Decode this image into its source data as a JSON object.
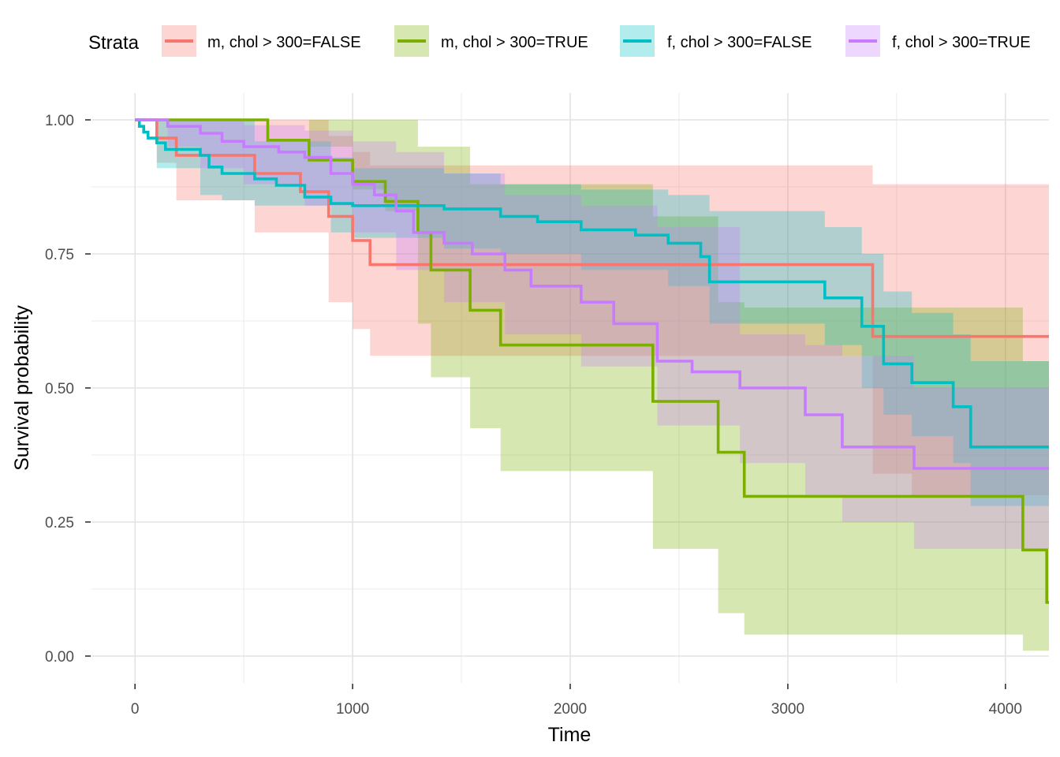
{
  "chart_data": {
    "type": "line",
    "subtype": "kaplan-meier survival curves with confidence bands",
    "xlabel": "Time",
    "ylabel": "Survival probability",
    "xlim": [
      -200,
      4200
    ],
    "ylim": [
      -0.05,
      1.05
    ],
    "x_ticks": [
      0,
      1000,
      2000,
      3000,
      4000
    ],
    "x_tick_labels": [
      "0",
      "1000",
      "2000",
      "3000",
      "4000"
    ],
    "y_ticks": [
      0,
      0.25,
      0.5,
      0.75,
      1
    ],
    "y_tick_labels": [
      "0.00",
      "0.25",
      "0.50",
      "0.75",
      "1.00"
    ],
    "legend": {
      "title": "Strata",
      "position": "top"
    },
    "series": [
      {
        "name": "m, chol > 300=FALSE",
        "color": "#F8766D",
        "steps": [
          [
            0,
            1
          ],
          [
            100,
            0.966
          ],
          [
            190,
            0.934
          ],
          [
            550,
            0.9
          ],
          [
            760,
            0.866
          ],
          [
            890,
            0.82
          ],
          [
            1000,
            0.775
          ],
          [
            1080,
            0.73
          ],
          [
            3390,
            0.596
          ],
          [
            4200,
            0.596
          ]
        ],
        "lower": [
          [
            0,
            1
          ],
          [
            100,
            0.92
          ],
          [
            190,
            0.85
          ],
          [
            550,
            0.79
          ],
          [
            890,
            0.66
          ],
          [
            1000,
            0.61
          ],
          [
            1080,
            0.56
          ],
          [
            3390,
            0.34
          ],
          [
            3570,
            0.3
          ],
          [
            4200,
            0.3
          ]
        ],
        "upper": [
          [
            0,
            1
          ],
          [
            190,
            1
          ],
          [
            550,
            1
          ],
          [
            760,
            1
          ],
          [
            890,
            0.97
          ],
          [
            1000,
            0.94
          ],
          [
            1080,
            0.915
          ],
          [
            3390,
            0.88
          ],
          [
            4200,
            0.88
          ]
        ]
      },
      {
        "name": "m, chol > 300=TRUE",
        "color": "#7CAE00",
        "steps": [
          [
            0,
            1
          ],
          [
            610,
            0.962
          ],
          [
            800,
            0.925
          ],
          [
            1000,
            0.885
          ],
          [
            1150,
            0.848
          ],
          [
            1300,
            0.79
          ],
          [
            1360,
            0.72
          ],
          [
            1540,
            0.645
          ],
          [
            1680,
            0.58
          ],
          [
            2380,
            0.475
          ],
          [
            2680,
            0.38
          ],
          [
            2800,
            0.298
          ],
          [
            4080,
            0.198
          ],
          [
            4190,
            0.1
          ],
          [
            4200,
            0.1
          ]
        ],
        "lower": [
          [
            0,
            1
          ],
          [
            610,
            1
          ],
          [
            800,
            0.95
          ],
          [
            1000,
            0.87
          ],
          [
            1150,
            0.83
          ],
          [
            1300,
            0.62
          ],
          [
            1360,
            0.52
          ],
          [
            1540,
            0.425
          ],
          [
            1680,
            0.345
          ],
          [
            2380,
            0.2
          ],
          [
            2680,
            0.08
          ],
          [
            2800,
            0.04
          ],
          [
            4080,
            0.01
          ],
          [
            4200,
            0.01
          ]
        ],
        "upper": [
          [
            0,
            1
          ],
          [
            610,
            1
          ],
          [
            800,
            1
          ],
          [
            1150,
            1
          ],
          [
            1300,
            0.95
          ],
          [
            1360,
            0.95
          ],
          [
            1540,
            0.88
          ],
          [
            1680,
            0.88
          ],
          [
            2380,
            0.82
          ],
          [
            2680,
            0.66
          ],
          [
            2800,
            0.65
          ],
          [
            4080,
            0.55
          ],
          [
            4200,
            0.55
          ]
        ]
      },
      {
        "name": "f, chol > 300=FALSE",
        "color": "#00BFC4",
        "steps": [
          [
            0,
            1
          ],
          [
            20,
            0.988
          ],
          [
            40,
            0.977
          ],
          [
            60,
            0.966
          ],
          [
            100,
            0.957
          ],
          [
            140,
            0.945
          ],
          [
            300,
            0.934
          ],
          [
            340,
            0.912
          ],
          [
            400,
            0.9
          ],
          [
            550,
            0.89
          ],
          [
            650,
            0.878
          ],
          [
            780,
            0.856
          ],
          [
            900,
            0.844
          ],
          [
            1000,
            0.84
          ],
          [
            1420,
            0.834
          ],
          [
            1680,
            0.82
          ],
          [
            1850,
            0.81
          ],
          [
            2050,
            0.795
          ],
          [
            2300,
            0.785
          ],
          [
            2450,
            0.77
          ],
          [
            2600,
            0.745
          ],
          [
            2640,
            0.698
          ],
          [
            3170,
            0.668
          ],
          [
            3340,
            0.615
          ],
          [
            3440,
            0.545
          ],
          [
            3570,
            0.51
          ],
          [
            3760,
            0.465
          ],
          [
            3840,
            0.39
          ],
          [
            4200,
            0.39
          ]
        ],
        "lower": [
          [
            0,
            1
          ],
          [
            100,
            0.91
          ],
          [
            300,
            0.86
          ],
          [
            400,
            0.85
          ],
          [
            550,
            0.84
          ],
          [
            900,
            0.79
          ],
          [
            1000,
            0.78
          ],
          [
            1420,
            0.76
          ],
          [
            1680,
            0.75
          ],
          [
            2050,
            0.72
          ],
          [
            2450,
            0.69
          ],
          [
            2640,
            0.62
          ],
          [
            3170,
            0.58
          ],
          [
            3340,
            0.5
          ],
          [
            3440,
            0.45
          ],
          [
            3570,
            0.41
          ],
          [
            3760,
            0.36
          ],
          [
            3840,
            0.28
          ],
          [
            4200,
            0.28
          ]
        ],
        "upper": [
          [
            0,
            1
          ],
          [
            100,
            1
          ],
          [
            300,
            1
          ],
          [
            550,
            0.96
          ],
          [
            900,
            0.93
          ],
          [
            1000,
            0.91
          ],
          [
            1420,
            0.9
          ],
          [
            1680,
            0.88
          ],
          [
            2050,
            0.87
          ],
          [
            2450,
            0.86
          ],
          [
            2640,
            0.83
          ],
          [
            3170,
            0.8
          ],
          [
            3340,
            0.75
          ],
          [
            3440,
            0.68
          ],
          [
            3570,
            0.64
          ],
          [
            3760,
            0.6
          ],
          [
            3840,
            0.55
          ],
          [
            4200,
            0.55
          ]
        ]
      },
      {
        "name": "f, chol > 300=TRUE",
        "color": "#C77CFF",
        "steps": [
          [
            0,
            1
          ],
          [
            150,
            0.988
          ],
          [
            300,
            0.975
          ],
          [
            400,
            0.96
          ],
          [
            500,
            0.95
          ],
          [
            660,
            0.94
          ],
          [
            780,
            0.93
          ],
          [
            900,
            0.9
          ],
          [
            1000,
            0.88
          ],
          [
            1100,
            0.86
          ],
          [
            1200,
            0.83
          ],
          [
            1280,
            0.79
          ],
          [
            1420,
            0.77
          ],
          [
            1550,
            0.75
          ],
          [
            1700,
            0.72
          ],
          [
            1820,
            0.69
          ],
          [
            2050,
            0.66
          ],
          [
            2200,
            0.62
          ],
          [
            2400,
            0.55
          ],
          [
            2560,
            0.53
          ],
          [
            2780,
            0.5
          ],
          [
            3080,
            0.45
          ],
          [
            3250,
            0.39
          ],
          [
            3580,
            0.35
          ],
          [
            4200,
            0.35
          ]
        ],
        "lower": [
          [
            0,
            1
          ],
          [
            150,
            0.95
          ],
          [
            300,
            0.91
          ],
          [
            500,
            0.88
          ],
          [
            780,
            0.84
          ],
          [
            1000,
            0.79
          ],
          [
            1200,
            0.72
          ],
          [
            1420,
            0.66
          ],
          [
            1700,
            0.6
          ],
          [
            2050,
            0.54
          ],
          [
            2400,
            0.43
          ],
          [
            2780,
            0.36
          ],
          [
            3080,
            0.3
          ],
          [
            3250,
            0.25
          ],
          [
            3580,
            0.2
          ],
          [
            4200,
            0.2
          ]
        ],
        "upper": [
          [
            0,
            1
          ],
          [
            300,
            1
          ],
          [
            500,
            0.99
          ],
          [
            780,
            0.98
          ],
          [
            1000,
            0.96
          ],
          [
            1200,
            0.94
          ],
          [
            1420,
            0.9
          ],
          [
            1700,
            0.86
          ],
          [
            2050,
            0.84
          ],
          [
            2400,
            0.8
          ],
          [
            2780,
            0.6
          ],
          [
            3080,
            0.58
          ],
          [
            3250,
            0.56
          ],
          [
            3580,
            0.5
          ],
          [
            4200,
            0.5
          ]
        ]
      }
    ]
  }
}
